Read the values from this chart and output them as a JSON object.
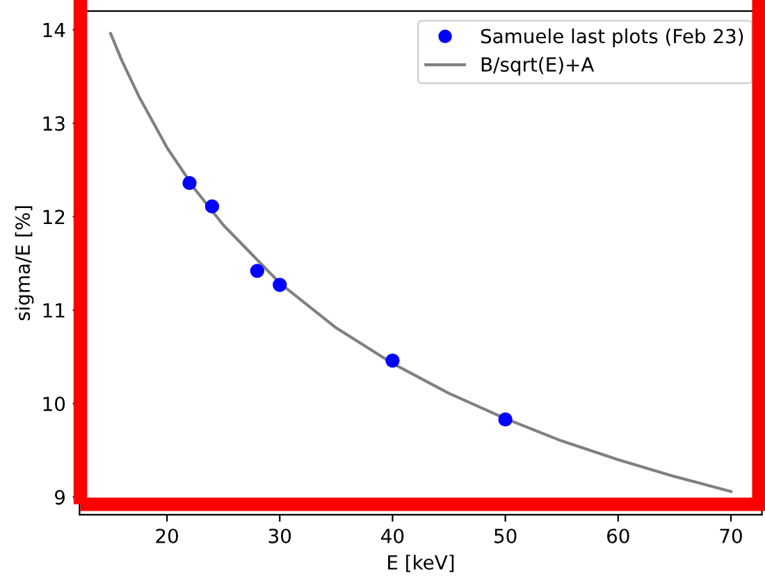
{
  "chart_data": {
    "type": "scatter",
    "xlabel": "E [keV]",
    "ylabel": "sigma/E [%]",
    "xlim": [
      12.25,
      72.75
    ],
    "xticks": [
      20,
      30,
      40,
      50,
      60,
      70
    ],
    "ylim": [
      8.81,
      14.2
    ],
    "yticks": [
      9,
      10,
      11,
      12,
      13,
      14
    ],
    "grid": false,
    "legend": "top right",
    "series": [
      {
        "name": "Samuele last plots (Feb 23)",
        "marker": "circle",
        "color": "#0000ff",
        "x": [
          22,
          24,
          28,
          30,
          40,
          50
        ],
        "values": [
          12.36,
          12.11,
          11.42,
          11.27,
          10.46,
          9.83
        ]
      },
      {
        "name": "B/sqrt(E)+A",
        "type": "line",
        "marker": "none",
        "line_style": "solid",
        "color": "#808080",
        "x": [
          15,
          16,
          17.5,
          20,
          22.5,
          25,
          30,
          35,
          40,
          45,
          50,
          55,
          60,
          65,
          70
        ],
        "values": [
          13.96,
          13.67,
          13.29,
          12.74,
          12.29,
          11.91,
          11.29,
          10.81,
          10.43,
          10.11,
          9.84,
          9.6,
          9.4,
          9.22,
          9.06
        ]
      }
    ]
  }
}
